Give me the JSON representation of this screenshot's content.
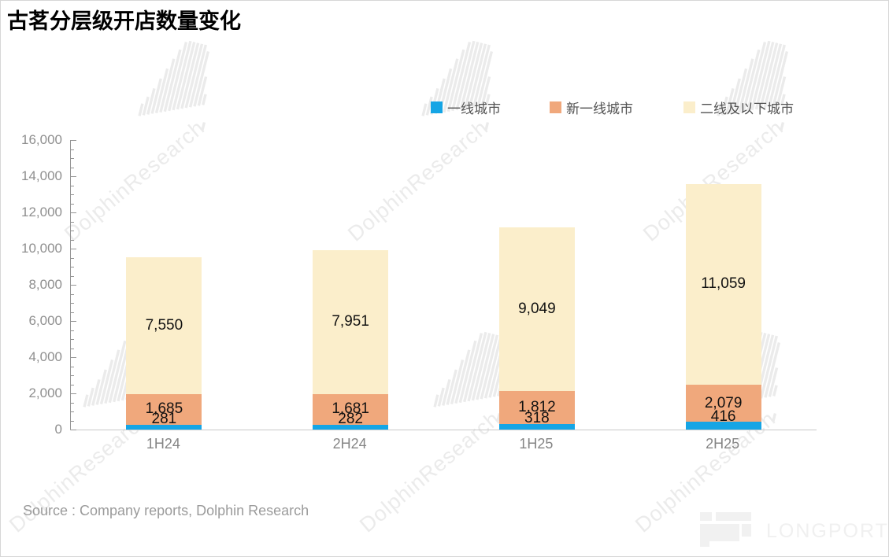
{
  "title": "古茗分层级开店数量变化",
  "source": "Source : Company reports, Dolphin Research",
  "watermark": {
    "text": "DolphinResearch"
  },
  "logo": {
    "text": "LONGPORT"
  },
  "colors": {
    "tier1_blue": "#15a5e5",
    "tier2_orange": "#f0a87c",
    "tier3_cream": "#fbeecb",
    "axis_line": "#949494",
    "baseline": "#c9c9c9",
    "watermark_gray": "#ebebeb"
  },
  "legend": [
    {
      "label": "一线城市",
      "color": "#15a5e5"
    },
    {
      "label": "新一线城市",
      "color": "#f0a87c"
    },
    {
      "label": "二线及以下城市",
      "color": "#fbeecb"
    }
  ],
  "chart_data": {
    "type": "bar",
    "stacked": true,
    "title": "古茗分层级开店数量变化",
    "categories": [
      "1H24",
      "2H24",
      "1H25",
      "2H25"
    ],
    "series": [
      {
        "name": "一线城市",
        "color": "#15a5e5",
        "values": [
          281,
          282,
          318,
          416
        ]
      },
      {
        "name": "新一线城市",
        "color": "#f0a87c",
        "values": [
          1685,
          1681,
          1812,
          2079
        ]
      },
      {
        "name": "二线及以下城市",
        "color": "#fbeecb",
        "values": [
          7550,
          7951,
          9049,
          11059
        ]
      }
    ],
    "totals": [
      9516,
      9914,
      11179,
      13554
    ],
    "xlabel": "",
    "ylabel": "",
    "ylim": [
      0,
      16000
    ],
    "y_major_step": 2000,
    "y_minor_step": 500,
    "grid": false,
    "legend_position": "top"
  }
}
